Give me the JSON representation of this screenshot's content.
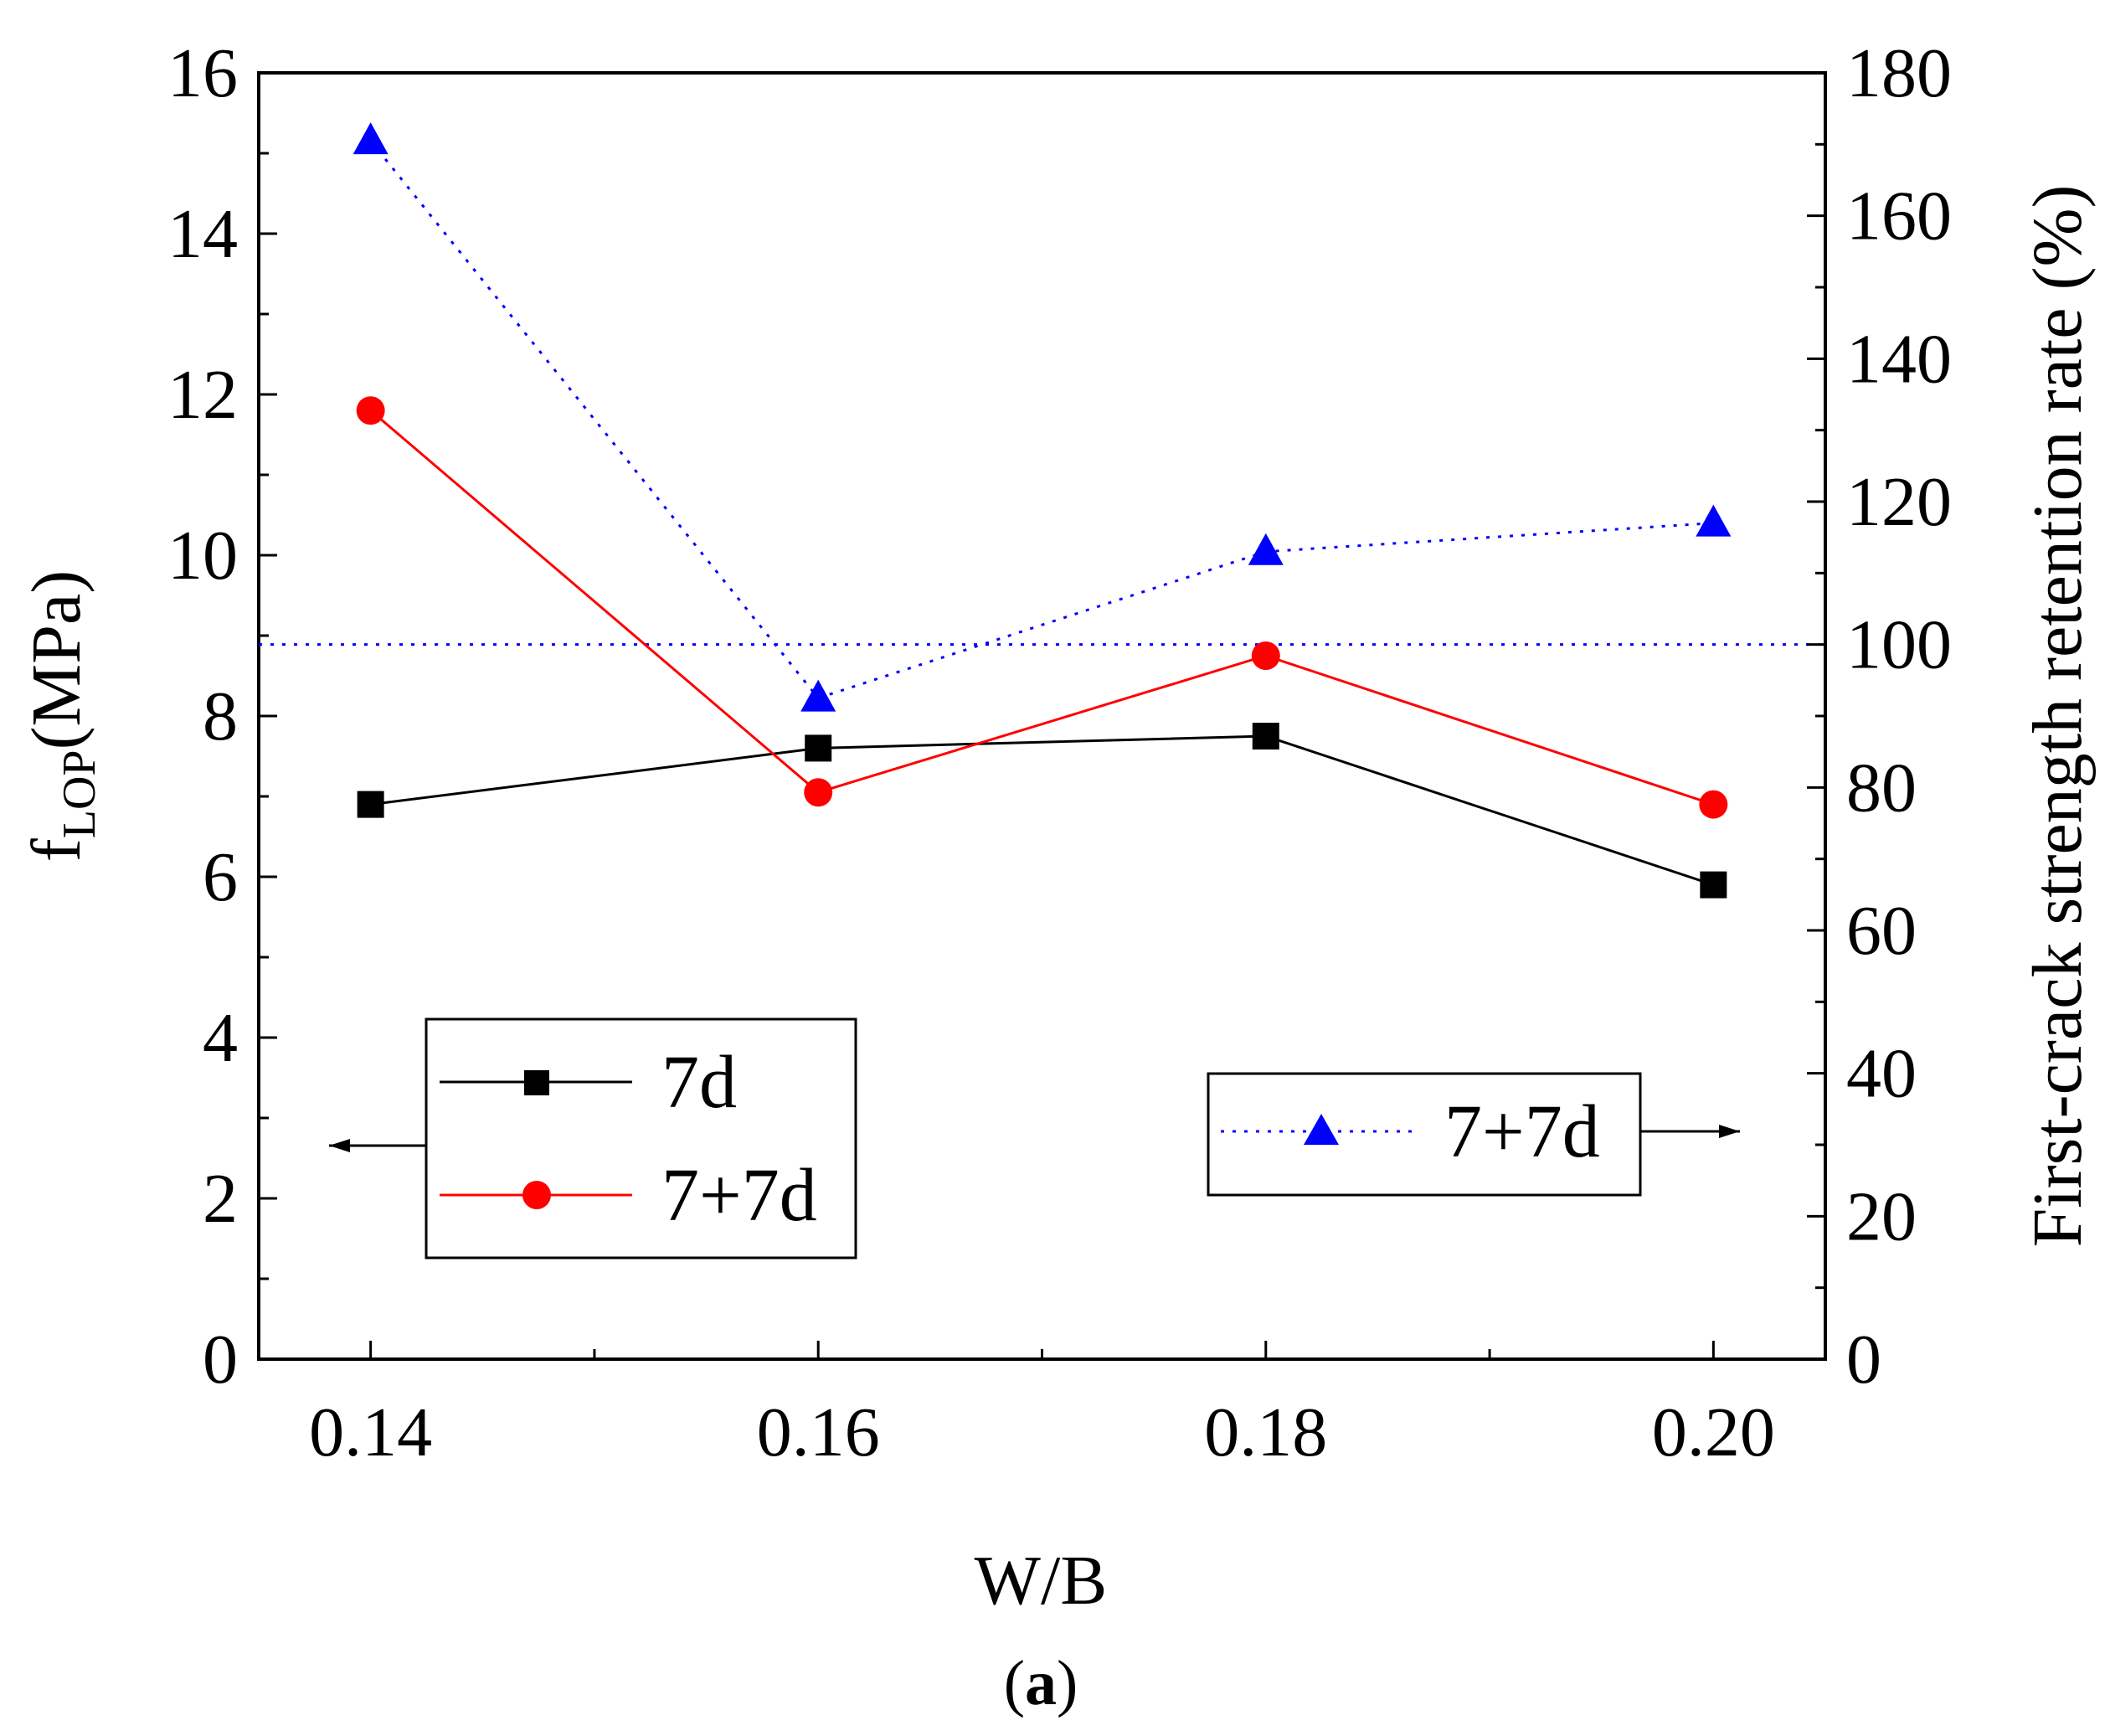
{
  "chart_data": {
    "type": "line",
    "caption_open": "(",
    "caption_letter": "a",
    "caption_close": ")",
    "xlabel": "W/B",
    "ylabel_left_main": "f",
    "ylabel_left_sub": "LOP",
    "ylabel_left_unit": "(MPa)",
    "ylabel_right": "First-crack strength retention rate (%)",
    "x": [
      0.14,
      0.16,
      0.18,
      0.2
    ],
    "x_tick_labels": [
      "0.14",
      "0.16",
      "0.18",
      "0.20"
    ],
    "xlim": [
      0.135,
      0.205
    ],
    "ylim_left": [
      0,
      16
    ],
    "left_ticks": [
      "0",
      "2",
      "4",
      "6",
      "8",
      "10",
      "12",
      "14",
      "16"
    ],
    "ylim_right": [
      0,
      180
    ],
    "right_ticks": [
      "0",
      "20",
      "40",
      "60",
      "80",
      "100",
      "120",
      "140",
      "160",
      "180"
    ],
    "reference_line_right": 100,
    "series": [
      {
        "name": "7d",
        "axis": "left",
        "marker": "square",
        "color": "#000000",
        "line": "solid",
        "values": [
          6.9,
          7.6,
          7.75,
          5.9
        ]
      },
      {
        "name": "7+7d",
        "axis": "left",
        "marker": "circle",
        "color": "#ff0000",
        "line": "solid",
        "values": [
          11.8,
          7.05,
          8.75,
          6.9
        ]
      },
      {
        "name": "7+7d",
        "axis": "right",
        "marker": "triangle",
        "color": "#0000ff",
        "line": "dotted",
        "values": [
          170.5,
          92.5,
          113,
          117
        ]
      }
    ],
    "legend_left": {
      "position": "bottom-left",
      "pointer": "left-axis"
    },
    "legend_right": {
      "position": "bottom-right",
      "pointer": "right-axis"
    }
  }
}
